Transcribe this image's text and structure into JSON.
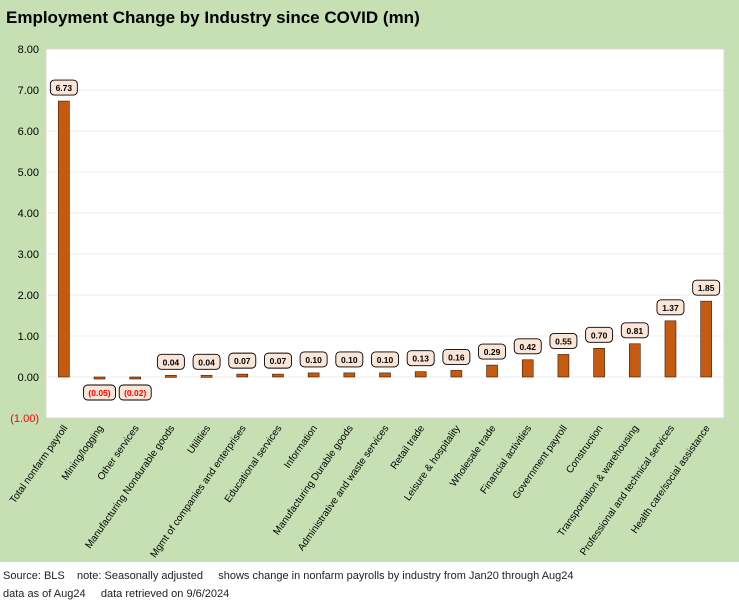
{
  "title": "Employment Change by Industry since COVID (mn)",
  "footer": {
    "line1": "Source: BLS    note: Seasonally adjusted     shows change in nonfarm payrolls by industry from Jan20 through Aug24",
    "line2": "data as of Aug24     data retrieved on 9/6/2024"
  },
  "colors": {
    "frame": "#c6e0b4",
    "plot": "#ffffff",
    "bar": "#c55a11",
    "bar_edge": "#3b1a05",
    "label_box": "#fbe5d6",
    "negative_text": "#ff0000"
  },
  "chart_data": {
    "type": "bar",
    "categories": [
      "Total nonfarm payroll",
      "Mining/logging",
      "Other services",
      "Manufacturing Nondurable goods",
      "Utilities",
      "Mgmt of companies and enterprises",
      "Educational services",
      "Information",
      "Manufacturing Durable goods",
      "Administrative and waste services",
      "Retail trade",
      "Leisure & hospitality",
      "Wholesale trade",
      "Financial activities",
      "Government payroll",
      "Construction",
      "Transportation & warehousing",
      "Professional and technical services",
      "Health care/social assistance"
    ],
    "values": [
      6.73,
      -0.05,
      -0.02,
      0.04,
      0.04,
      0.07,
      0.07,
      0.1,
      0.1,
      0.1,
      0.13,
      0.16,
      0.29,
      0.42,
      0.55,
      0.7,
      0.81,
      1.37,
      1.85
    ],
    "data_labels": [
      "6.73",
      "(0.05)",
      "(0.02)",
      "0.04",
      "0.04",
      "0.07",
      "0.07",
      "0.10",
      "0.10",
      "0.10",
      "0.13",
      "0.16",
      "0.29",
      "0.42",
      "0.55",
      "0.70",
      "0.81",
      "1.37",
      "1.85"
    ],
    "yticks": [
      -1,
      0,
      1,
      2,
      3,
      4,
      5,
      6,
      7,
      8
    ],
    "ytick_labels": [
      "(1.00)",
      "0.00",
      "1.00",
      "2.00",
      "3.00",
      "4.00",
      "5.00",
      "6.00",
      "7.00",
      "8.00"
    ],
    "ylim": [
      -1,
      8
    ],
    "grid": true,
    "legend": "none",
    "title": "Employment Change by Industry since COVID (mn)",
    "xlabel": "",
    "ylabel": ""
  }
}
